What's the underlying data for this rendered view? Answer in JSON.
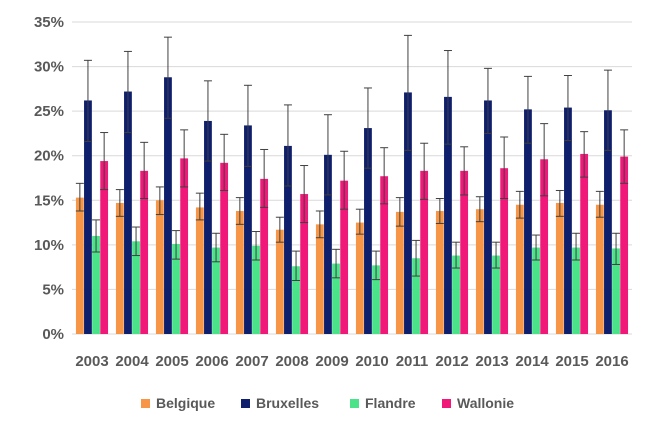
{
  "chart_data": {
    "type": "bar",
    "title": "",
    "xlabel": "",
    "ylabel": "",
    "ylim": [
      0,
      35
    ],
    "y_tick_step": 5,
    "y_tick_format": "percent",
    "grid": "horizontal",
    "legend_position": "bottom",
    "categories": [
      "2003",
      "2004",
      "2005",
      "2006",
      "2007",
      "2008",
      "2009",
      "2010",
      "2011",
      "2012",
      "2013",
      "2014",
      "2015",
      "2016"
    ],
    "series": [
      {
        "name": "Belgique",
        "color": "#F79646",
        "values": [
          15.3,
          14.7,
          15.0,
          14.2,
          13.8,
          11.7,
          12.3,
          12.5,
          13.7,
          13.8,
          14.0,
          14.5,
          14.7,
          14.5
        ],
        "error_low": [
          13.8,
          13.2,
          13.4,
          12.8,
          12.3,
          10.3,
          10.8,
          11.2,
          12.1,
          12.4,
          12.6,
          13.0,
          13.2,
          13.1
        ],
        "error_high": [
          16.9,
          16.2,
          16.5,
          15.8,
          15.3,
          13.1,
          13.8,
          14.0,
          15.3,
          15.2,
          15.4,
          16.0,
          16.1,
          16.0
        ]
      },
      {
        "name": "Bruxelles",
        "color": "#0F1F6B",
        "values": [
          26.2,
          27.2,
          28.8,
          23.9,
          23.4,
          21.1,
          20.1,
          23.1,
          27.1,
          26.6,
          26.2,
          25.2,
          25.4,
          25.1
        ],
        "error_low": [
          21.6,
          22.6,
          24.2,
          19.4,
          18.8,
          16.6,
          15.6,
          18.6,
          20.6,
          21.3,
          22.5,
          21.4,
          21.7,
          20.6
        ],
        "error_high": [
          30.7,
          31.7,
          33.3,
          28.4,
          27.9,
          25.7,
          24.6,
          27.6,
          33.5,
          31.8,
          29.8,
          28.9,
          29.0,
          29.6
        ]
      },
      {
        "name": "Flandre",
        "color": "#4BE38A",
        "values": [
          11.0,
          10.4,
          10.1,
          9.7,
          9.9,
          7.6,
          7.9,
          7.7,
          8.5,
          8.8,
          8.8,
          9.7,
          9.7,
          9.6
        ],
        "error_low": [
          9.2,
          8.8,
          8.4,
          8.1,
          8.3,
          6.0,
          6.3,
          6.1,
          6.5,
          7.4,
          7.4,
          8.3,
          8.3,
          7.8
        ],
        "error_high": [
          12.8,
          12.0,
          11.6,
          11.3,
          11.5,
          9.3,
          9.5,
          9.3,
          10.5,
          10.3,
          10.3,
          11.1,
          11.3,
          11.3
        ]
      },
      {
        "name": "Wallonie",
        "color": "#F0197A",
        "values": [
          19.4,
          18.3,
          19.7,
          19.2,
          17.4,
          15.7,
          17.2,
          17.7,
          18.3,
          18.3,
          18.6,
          19.6,
          20.2,
          19.9
        ],
        "error_low": [
          16.2,
          15.2,
          16.5,
          16.1,
          14.2,
          12.5,
          14.0,
          14.6,
          15.1,
          15.6,
          15.2,
          15.5,
          17.6,
          16.9
        ],
        "error_high": [
          22.6,
          21.5,
          22.9,
          22.4,
          20.7,
          18.9,
          20.5,
          20.9,
          21.4,
          21.0,
          22.1,
          23.6,
          22.7,
          22.9
        ]
      }
    ]
  }
}
